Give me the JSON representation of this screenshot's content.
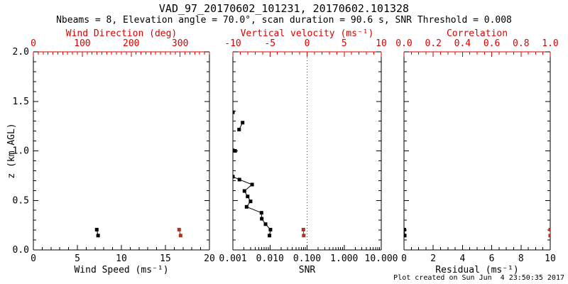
{
  "figure": {
    "title": "VAD_97_20170602_101231, 20170602.101328",
    "subtitle": "Nbeams = 8, Elevation angle = 70.0°, scan duration = 90.6 s, SNR Threshold = 0.008",
    "credit": "Plot created on Sun Jun  4 23:50:35 2017",
    "colors": {
      "background": "#ffffff",
      "axis_black": "#000000",
      "axis_red": "#dd0000",
      "marker_red": "#ad3524",
      "marker_black": "#000000"
    }
  },
  "chart_data": [
    {
      "type": "scatter",
      "name": "wind-panel",
      "y_axis": {
        "label": "z (km AGL)",
        "lim": [
          0.0,
          2.0
        ],
        "ticks": [
          0.0,
          0.5,
          1.0,
          1.5,
          2.0
        ],
        "tick_labels": [
          "0.0",
          "0.5",
          "1.0",
          "1.5",
          "2.0"
        ],
        "minor_step": 0.1,
        "show_labels": true
      },
      "bottom_axis": {
        "label": "Wind Speed (ms⁻¹)",
        "scale": "linear",
        "lim": [
          0,
          20
        ],
        "ticks": [
          0,
          5,
          10,
          15,
          20
        ],
        "tick_labels": [
          "0",
          "5",
          "10",
          "15",
          "20"
        ],
        "minor_step": 1,
        "color": "black"
      },
      "top_axis": {
        "label": "Wind Direction (deg)",
        "scale": "linear",
        "lim": [
          0,
          360
        ],
        "ticks": [
          0,
          100,
          200,
          300
        ],
        "tick_labels": [
          "0",
          "100",
          "200",
          "300"
        ],
        "minor_step": 10,
        "color": "red"
      },
      "series": [
        {
          "name": "wind-speed",
          "axis": "bottom",
          "color": "black",
          "marker": "square",
          "points": [
            [
              7.2,
              0.205
            ],
            [
              7.35,
              0.145
            ]
          ],
          "connect": [
            [
              0,
              1
            ]
          ]
        },
        {
          "name": "wind-direction",
          "axis": "top",
          "color": "dark_red",
          "marker": "square",
          "points": [
            [
              298,
              0.205
            ],
            [
              301,
              0.145
            ]
          ],
          "connect": [
            [
              0,
              1
            ]
          ]
        }
      ]
    },
    {
      "type": "scatter",
      "name": "snr-panel",
      "y_axis": {
        "label": "",
        "lim": [
          0.0,
          2.0
        ],
        "ticks": [
          0.0,
          0.5,
          1.0,
          1.5,
          2.0
        ],
        "tick_labels": [],
        "minor_step": 0.1,
        "show_labels": false
      },
      "bottom_axis": {
        "label": "SNR",
        "scale": "log",
        "lim": [
          0.001,
          10.0
        ],
        "ticks": [
          0.001,
          0.01,
          0.1,
          1.0,
          10.0
        ],
        "tick_labels": [
          "0.001",
          "0.010",
          "0.100",
          "1.000",
          "10.000"
        ],
        "minor_step": 0,
        "color": "black"
      },
      "top_axis": {
        "label": "Vertical velocity (ms⁻¹)",
        "scale": "linear",
        "lim": [
          -10,
          10
        ],
        "ticks": [
          -10,
          -5,
          0,
          5,
          10
        ],
        "tick_labels": [
          "-10",
          "-5",
          "0",
          "5",
          "10"
        ],
        "minor_step": 1,
        "color": "red"
      },
      "ref_line": {
        "axis": "top",
        "value": 0,
        "style": "dotted",
        "color": "red"
      },
      "series": [
        {
          "name": "snr-profile",
          "axis": "bottom",
          "color": "black",
          "marker": "square",
          "points": [
            [
              0.001,
              1.39
            ],
            [
              0.00183,
              1.285
            ],
            [
              0.00147,
              1.215
            ],
            [
              0.001,
              1.005
            ],
            [
              0.00115,
              1.0
            ],
            [
              0.001,
              0.74
            ],
            [
              0.0015,
              0.71
            ],
            [
              0.0033,
              0.66
            ],
            [
              0.00205,
              0.595
            ],
            [
              0.0025,
              0.54
            ],
            [
              0.003,
              0.49
            ],
            [
              0.00234,
              0.435
            ],
            [
              0.0059,
              0.375
            ],
            [
              0.006,
              0.315
            ],
            [
              0.0076,
              0.26
            ],
            [
              0.0103,
              0.205
            ],
            [
              0.0097,
              0.145
            ]
          ],
          "connect": [
            [
              1,
              2
            ],
            [
              3,
              4
            ],
            [
              5,
              16
            ]
          ]
        },
        {
          "name": "vertical-velocity",
          "axis": "top",
          "color": "dark_red",
          "marker": "square",
          "points": [
            [
              -0.5,
              0.205
            ],
            [
              -0.45,
              0.145
            ]
          ],
          "connect": [
            [
              0,
              1
            ]
          ]
        }
      ]
    },
    {
      "type": "scatter",
      "name": "residual-panel",
      "y_axis": {
        "label": "",
        "lim": [
          0.0,
          2.0
        ],
        "ticks": [
          0.0,
          0.5,
          1.0,
          1.5,
          2.0
        ],
        "tick_labels": [],
        "minor_step": 0.1,
        "show_labels": false
      },
      "bottom_axis": {
        "label": "Residual (ms⁻¹)",
        "scale": "linear",
        "lim": [
          0,
          10
        ],
        "ticks": [
          0,
          2,
          4,
          6,
          8,
          10
        ],
        "tick_labels": [
          "0",
          "2",
          "4",
          "6",
          "8",
          "10"
        ],
        "minor_step": 0.5,
        "color": "black"
      },
      "top_axis": {
        "label": "Correlation",
        "scale": "linear",
        "lim": [
          0.0,
          1.0
        ],
        "ticks": [
          0.0,
          0.2,
          0.4,
          0.6,
          0.8,
          1.0
        ],
        "tick_labels": [
          "0.0",
          "0.2",
          "0.4",
          "0.6",
          "0.8",
          "1.0"
        ],
        "minor_step": 0.05,
        "color": "red"
      },
      "series": [
        {
          "name": "residual",
          "axis": "bottom",
          "color": "black",
          "marker": "square",
          "points": [
            [
              0.02,
              0.205
            ],
            [
              0.05,
              0.145
            ]
          ],
          "connect": [
            [
              0,
              1
            ]
          ]
        },
        {
          "name": "correlation",
          "axis": "top",
          "color": "dark_red",
          "marker": "square",
          "points": [
            [
              1.0,
              0.205
            ],
            [
              1.0,
              0.145
            ]
          ],
          "connect": [
            [
              0,
              1
            ]
          ]
        }
      ]
    }
  ]
}
